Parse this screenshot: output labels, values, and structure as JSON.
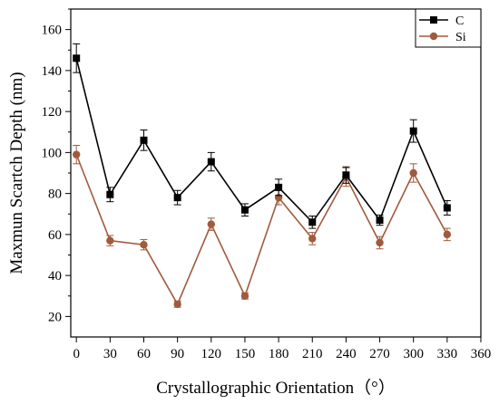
{
  "chart_data": {
    "type": "line",
    "title": "",
    "xlabel": "Crystallographic Orientation（°）",
    "ylabel": "Maxmun Scartch Depth (nm)",
    "x": [
      0,
      30,
      60,
      90,
      120,
      150,
      180,
      210,
      240,
      270,
      300,
      330
    ],
    "xlim": [
      -5,
      360
    ],
    "ylim": [
      10,
      170
    ],
    "xticks": [
      0,
      30,
      60,
      90,
      120,
      150,
      180,
      210,
      240,
      270,
      300,
      330,
      360
    ],
    "yticks": [
      20,
      40,
      60,
      80,
      100,
      120,
      140,
      160
    ],
    "grid": false,
    "legend_position": "top-right",
    "series": [
      {
        "name": "C",
        "color": "#000000",
        "marker": "square",
        "values": [
          146,
          79.5,
          106,
          78,
          95.5,
          72,
          83,
          66,
          89,
          67,
          110.5,
          73
        ],
        "errors": [
          7,
          3.5,
          5,
          3.5,
          4.5,
          3,
          4,
          3,
          4,
          2.5,
          5.5,
          3.5
        ]
      },
      {
        "name": "Si",
        "color": "#a05a3c",
        "marker": "circle",
        "values": [
          99,
          57,
          55,
          26,
          65,
          30,
          78,
          58,
          88,
          56,
          90,
          60
        ],
        "errors": [
          4.5,
          2.5,
          2.5,
          1.5,
          3,
          1.5,
          3.5,
          3,
          4.5,
          3,
          4.5,
          3
        ]
      }
    ]
  }
}
